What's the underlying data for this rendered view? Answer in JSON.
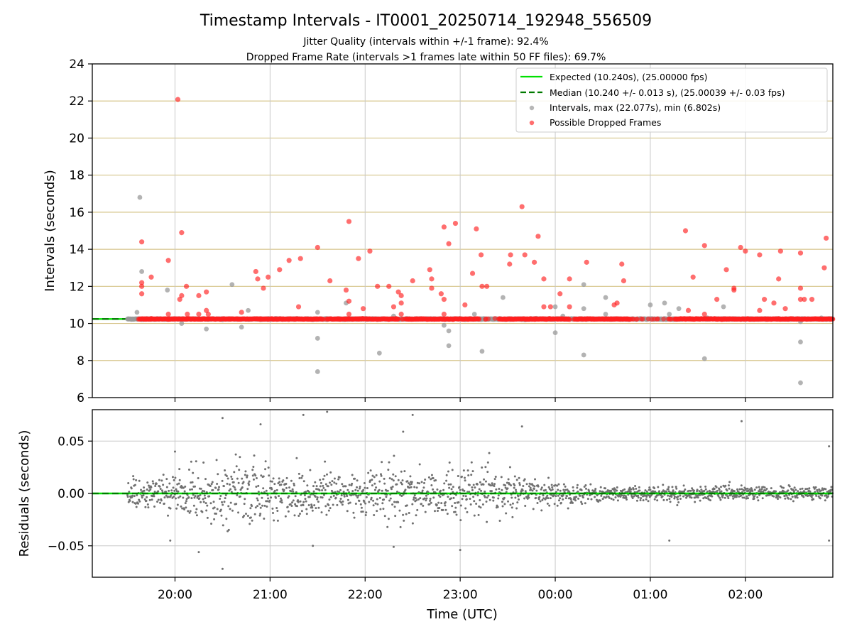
{
  "chart_data": [
    {
      "type": "scatter",
      "title": "Timestamp Intervals - IT0001_20250714_192948_556509",
      "subtitle_lines": [
        "Jitter Quality (intervals within +/-1 frame): 92.4%",
        "Dropped Frame Rate (intervals >1 frames late within 50 FF files): 69.7%"
      ],
      "xlabel": "",
      "ylabel": "Intervals (seconds)",
      "x_ticks": [
        "20:00",
        "21:00",
        "22:00",
        "23:00",
        "00:00",
        "01:00",
        "02:00"
      ],
      "x_tick_hours": [
        20.0,
        21.0,
        22.0,
        23.0,
        24.0,
        25.0,
        26.0
      ],
      "xlim_hours": [
        19.13,
        26.92
      ],
      "ylim": [
        6,
        24
      ],
      "y_ticks": [
        6,
        8,
        10,
        12,
        14,
        16,
        18,
        20,
        22,
        24
      ],
      "grid": true,
      "legend_position": "top-right",
      "colors": {
        "expected": "#00e000",
        "median": "#007a00",
        "intervals": "#999999",
        "dropped": "#ff2020",
        "hgrid": "#d6c48a",
        "vgrid": "#c8c8c8"
      },
      "lines": {
        "expected": {
          "label": "Expected (10.240s), (25.00000 fps)",
          "value": 10.24
        },
        "median": {
          "label": "Median (10.240 +/- 0.013 s), (25.00039 +/- 0.03 fps)",
          "value": 10.24
        }
      },
      "series": [
        {
          "name": "Intervals, max (22.077s), min (6.802s)",
          "baseline_range_hours": [
            19.5,
            26.92
          ],
          "baseline_value": 10.24,
          "points": [
            [
              19.63,
              16.8
            ],
            [
              19.65,
              12.8
            ],
            [
              19.6,
              10.6
            ],
            [
              19.92,
              11.8
            ],
            [
              20.07,
              10.0
            ],
            [
              20.33,
              9.7
            ],
            [
              20.5,
              10.2
            ],
            [
              20.6,
              12.1
            ],
            [
              20.7,
              9.8
            ],
            [
              20.77,
              10.7
            ],
            [
              21.5,
              10.6
            ],
            [
              21.5,
              9.2
            ],
            [
              21.5,
              7.4
            ],
            [
              21.8,
              11.1
            ],
            [
              22.15,
              8.4
            ],
            [
              22.3,
              10.4
            ],
            [
              22.83,
              9.9
            ],
            [
              22.88,
              9.6
            ],
            [
              22.88,
              8.8
            ],
            [
              23.15,
              10.5
            ],
            [
              23.23,
              8.5
            ],
            [
              23.45,
              11.4
            ],
            [
              24.0,
              9.5
            ],
            [
              24.0,
              10.9
            ],
            [
              24.08,
              10.4
            ],
            [
              24.3,
              12.1
            ],
            [
              24.3,
              8.3
            ],
            [
              24.3,
              10.8
            ],
            [
              24.53,
              11.4
            ],
            [
              24.53,
              10.5
            ],
            [
              25.0,
              11.0
            ],
            [
              25.15,
              11.1
            ],
            [
              25.2,
              10.5
            ],
            [
              25.3,
              10.8
            ],
            [
              25.57,
              8.1
            ],
            [
              25.6,
              10.3
            ],
            [
              25.77,
              10.9
            ],
            [
              26.58,
              10.1
            ],
            [
              26.58,
              9.0
            ],
            [
              26.58,
              6.8
            ],
            [
              26.8,
              10.3
            ]
          ]
        },
        {
          "name": "Possible Dropped Frames",
          "baseline_range_hours": [
            19.6,
            26.92
          ],
          "baseline_value": 10.24,
          "points": [
            [
              19.65,
              14.4
            ],
            [
              19.65,
              12.2
            ],
            [
              19.65,
              12.0
            ],
            [
              19.65,
              11.6
            ],
            [
              19.75,
              12.5
            ],
            [
              19.93,
              13.4
            ],
            [
              19.93,
              10.5
            ],
            [
              20.03,
              22.08
            ],
            [
              20.05,
              11.3
            ],
            [
              20.07,
              14.9
            ],
            [
              20.07,
              11.5
            ],
            [
              20.12,
              12.0
            ],
            [
              20.13,
              10.5
            ],
            [
              20.25,
              11.5
            ],
            [
              20.25,
              10.5
            ],
            [
              20.33,
              11.7
            ],
            [
              20.33,
              10.7
            ],
            [
              20.35,
              10.5
            ],
            [
              20.7,
              10.6
            ],
            [
              20.85,
              12.8
            ],
            [
              20.87,
              12.4
            ],
            [
              20.93,
              11.9
            ],
            [
              20.98,
              12.5
            ],
            [
              21.1,
              12.9
            ],
            [
              21.2,
              13.4
            ],
            [
              21.3,
              10.9
            ],
            [
              21.32,
              13.5
            ],
            [
              21.5,
              14.1
            ],
            [
              21.63,
              12.3
            ],
            [
              21.8,
              11.8
            ],
            [
              21.83,
              15.5
            ],
            [
              21.83,
              11.2
            ],
            [
              21.83,
              10.5
            ],
            [
              21.93,
              13.5
            ],
            [
              21.98,
              10.8
            ],
            [
              22.05,
              13.9
            ],
            [
              22.13,
              12.0
            ],
            [
              22.25,
              12.0
            ],
            [
              22.3,
              10.9
            ],
            [
              22.35,
              11.7
            ],
            [
              22.38,
              11.5
            ],
            [
              22.38,
              11.1
            ],
            [
              22.38,
              10.5
            ],
            [
              22.5,
              12.3
            ],
            [
              22.68,
              12.9
            ],
            [
              22.7,
              12.4
            ],
            [
              22.7,
              11.9
            ],
            [
              22.8,
              11.6
            ],
            [
              22.83,
              15.2
            ],
            [
              22.83,
              11.3
            ],
            [
              22.83,
              10.5
            ],
            [
              22.88,
              14.3
            ],
            [
              22.95,
              15.4
            ],
            [
              23.05,
              11.0
            ],
            [
              23.13,
              12.7
            ],
            [
              23.17,
              15.1
            ],
            [
              23.22,
              13.7
            ],
            [
              23.23,
              12.0
            ],
            [
              23.28,
              12.0
            ],
            [
              23.52,
              13.2
            ],
            [
              23.53,
              13.7
            ],
            [
              23.65,
              16.3
            ],
            [
              23.68,
              13.7
            ],
            [
              23.78,
              13.3
            ],
            [
              23.82,
              14.7
            ],
            [
              23.88,
              12.4
            ],
            [
              23.88,
              10.9
            ],
            [
              23.95,
              10.9
            ],
            [
              24.05,
              11.6
            ],
            [
              24.15,
              12.4
            ],
            [
              24.15,
              10.9
            ],
            [
              24.33,
              13.3
            ],
            [
              24.62,
              11.0
            ],
            [
              24.65,
              11.1
            ],
            [
              24.7,
              13.2
            ],
            [
              24.72,
              12.3
            ],
            [
              25.37,
              15.0
            ],
            [
              25.4,
              10.7
            ],
            [
              25.45,
              12.5
            ],
            [
              25.57,
              14.2
            ],
            [
              25.57,
              10.5
            ],
            [
              25.7,
              11.3
            ],
            [
              25.8,
              12.9
            ],
            [
              25.88,
              11.9
            ],
            [
              25.88,
              11.8
            ],
            [
              25.95,
              14.1
            ],
            [
              26.0,
              13.9
            ],
            [
              26.15,
              13.7
            ],
            [
              26.15,
              10.7
            ],
            [
              26.2,
              11.3
            ],
            [
              26.3,
              11.1
            ],
            [
              26.35,
              12.4
            ],
            [
              26.37,
              13.9
            ],
            [
              26.42,
              10.8
            ],
            [
              26.58,
              13.8
            ],
            [
              26.58,
              11.9
            ],
            [
              26.58,
              11.3
            ],
            [
              26.62,
              11.3
            ],
            [
              26.7,
              11.3
            ],
            [
              26.83,
              13.0
            ],
            [
              26.85,
              14.6
            ]
          ]
        }
      ]
    },
    {
      "type": "scatter",
      "xlabel": "Time (UTC)",
      "ylabel": "Residuals (seconds)",
      "x_ticks": [
        "20:00",
        "21:00",
        "22:00",
        "23:00",
        "00:00",
        "01:00",
        "02:00"
      ],
      "x_tick_hours": [
        20.0,
        21.0,
        22.0,
        23.0,
        24.0,
        25.0,
        26.0
      ],
      "xlim_hours": [
        19.13,
        26.92
      ],
      "ylim": [
        -0.08,
        0.08
      ],
      "y_ticks": [
        -0.05,
        0.0,
        0.05
      ],
      "y_tick_labels": [
        "−0.05",
        "0.00",
        "0.05"
      ],
      "grid": true,
      "reference_line": 0.0,
      "colors": {
        "points": "#707070",
        "zero_line": "#00e000",
        "zero_dash": "#007a00"
      },
      "series": [
        {
          "name": "",
          "range_hours": [
            19.5,
            26.92
          ],
          "spread_profile": [
            [
              19.5,
              0.012
            ],
            [
              19.8,
              0.012
            ],
            [
              20.2,
              0.02
            ],
            [
              20.8,
              0.028
            ],
            [
              21.5,
              0.022
            ],
            [
              22.2,
              0.022
            ],
            [
              23.0,
              0.022
            ],
            [
              23.5,
              0.016
            ],
            [
              24.0,
              0.01
            ],
            [
              24.5,
              0.007
            ],
            [
              25.0,
              0.006
            ],
            [
              26.0,
              0.006
            ],
            [
              26.92,
              0.006
            ]
          ],
          "outliers": [
            [
              20.5,
              0.072
            ],
            [
              20.5,
              -0.072
            ],
            [
              21.35,
              0.075
            ],
            [
              21.6,
              0.078
            ],
            [
              22.5,
              0.075
            ],
            [
              22.4,
              0.059
            ],
            [
              20.9,
              0.066
            ],
            [
              20.25,
              -0.056
            ],
            [
              22.3,
              -0.051
            ],
            [
              23.0,
              -0.054
            ],
            [
              23.65,
              0.064
            ],
            [
              25.96,
              0.069
            ],
            [
              26.88,
              0.045
            ],
            [
              26.88,
              -0.045
            ],
            [
              25.2,
              -0.045
            ],
            [
              20.0,
              0.04
            ],
            [
              21.45,
              -0.05
            ],
            [
              19.95,
              -0.045
            ]
          ]
        }
      ]
    }
  ],
  "legend": {
    "expected_label": "Expected (10.240s), (25.00000 fps)",
    "median_label": "Median (10.240 +/- 0.013 s), (25.00039 +/- 0.03 fps)",
    "intervals_label": "Intervals, max (22.077s), min (6.802s)",
    "dropped_label": "Possible Dropped Frames"
  }
}
